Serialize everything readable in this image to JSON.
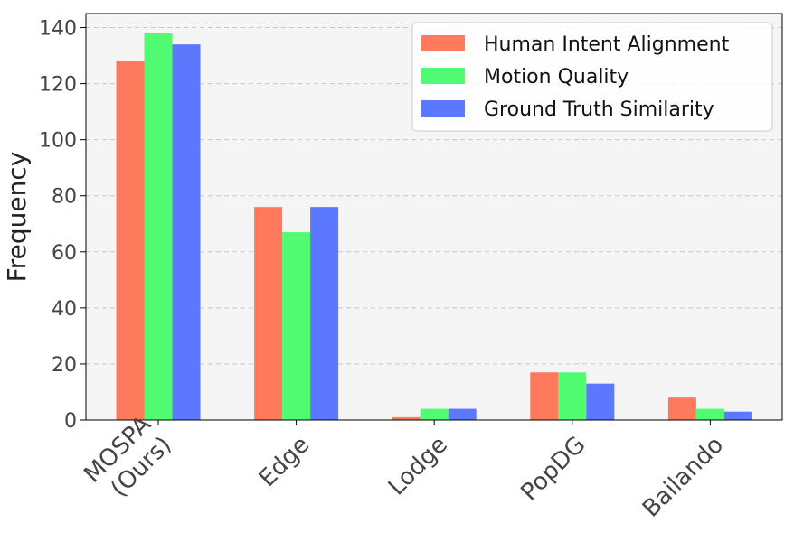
{
  "chart_data": {
    "type": "bar",
    "categories": [
      "MOSPA\n(Ours)",
      "Edge",
      "Lodge",
      "PopDG",
      "Bailando"
    ],
    "series": [
      {
        "name": "Human Intent Alignment",
        "color": "#ff7a5c",
        "values": [
          128,
          76,
          1,
          17,
          8
        ]
      },
      {
        "name": "Motion Quality",
        "color": "#52fc72",
        "values": [
          138,
          67,
          4,
          17,
          4
        ]
      },
      {
        "name": "Ground Truth Similarity",
        "color": "#5b78ff",
        "values": [
          134,
          76,
          4,
          13,
          3
        ]
      }
    ],
    "xlabel": "",
    "ylabel": "Frequency",
    "ylim": [
      0,
      145
    ],
    "yticks": [
      0,
      20,
      40,
      60,
      80,
      100,
      120,
      140
    ],
    "grid": true,
    "legend_position": "top-right",
    "plot_background": "#f5f5f5"
  }
}
